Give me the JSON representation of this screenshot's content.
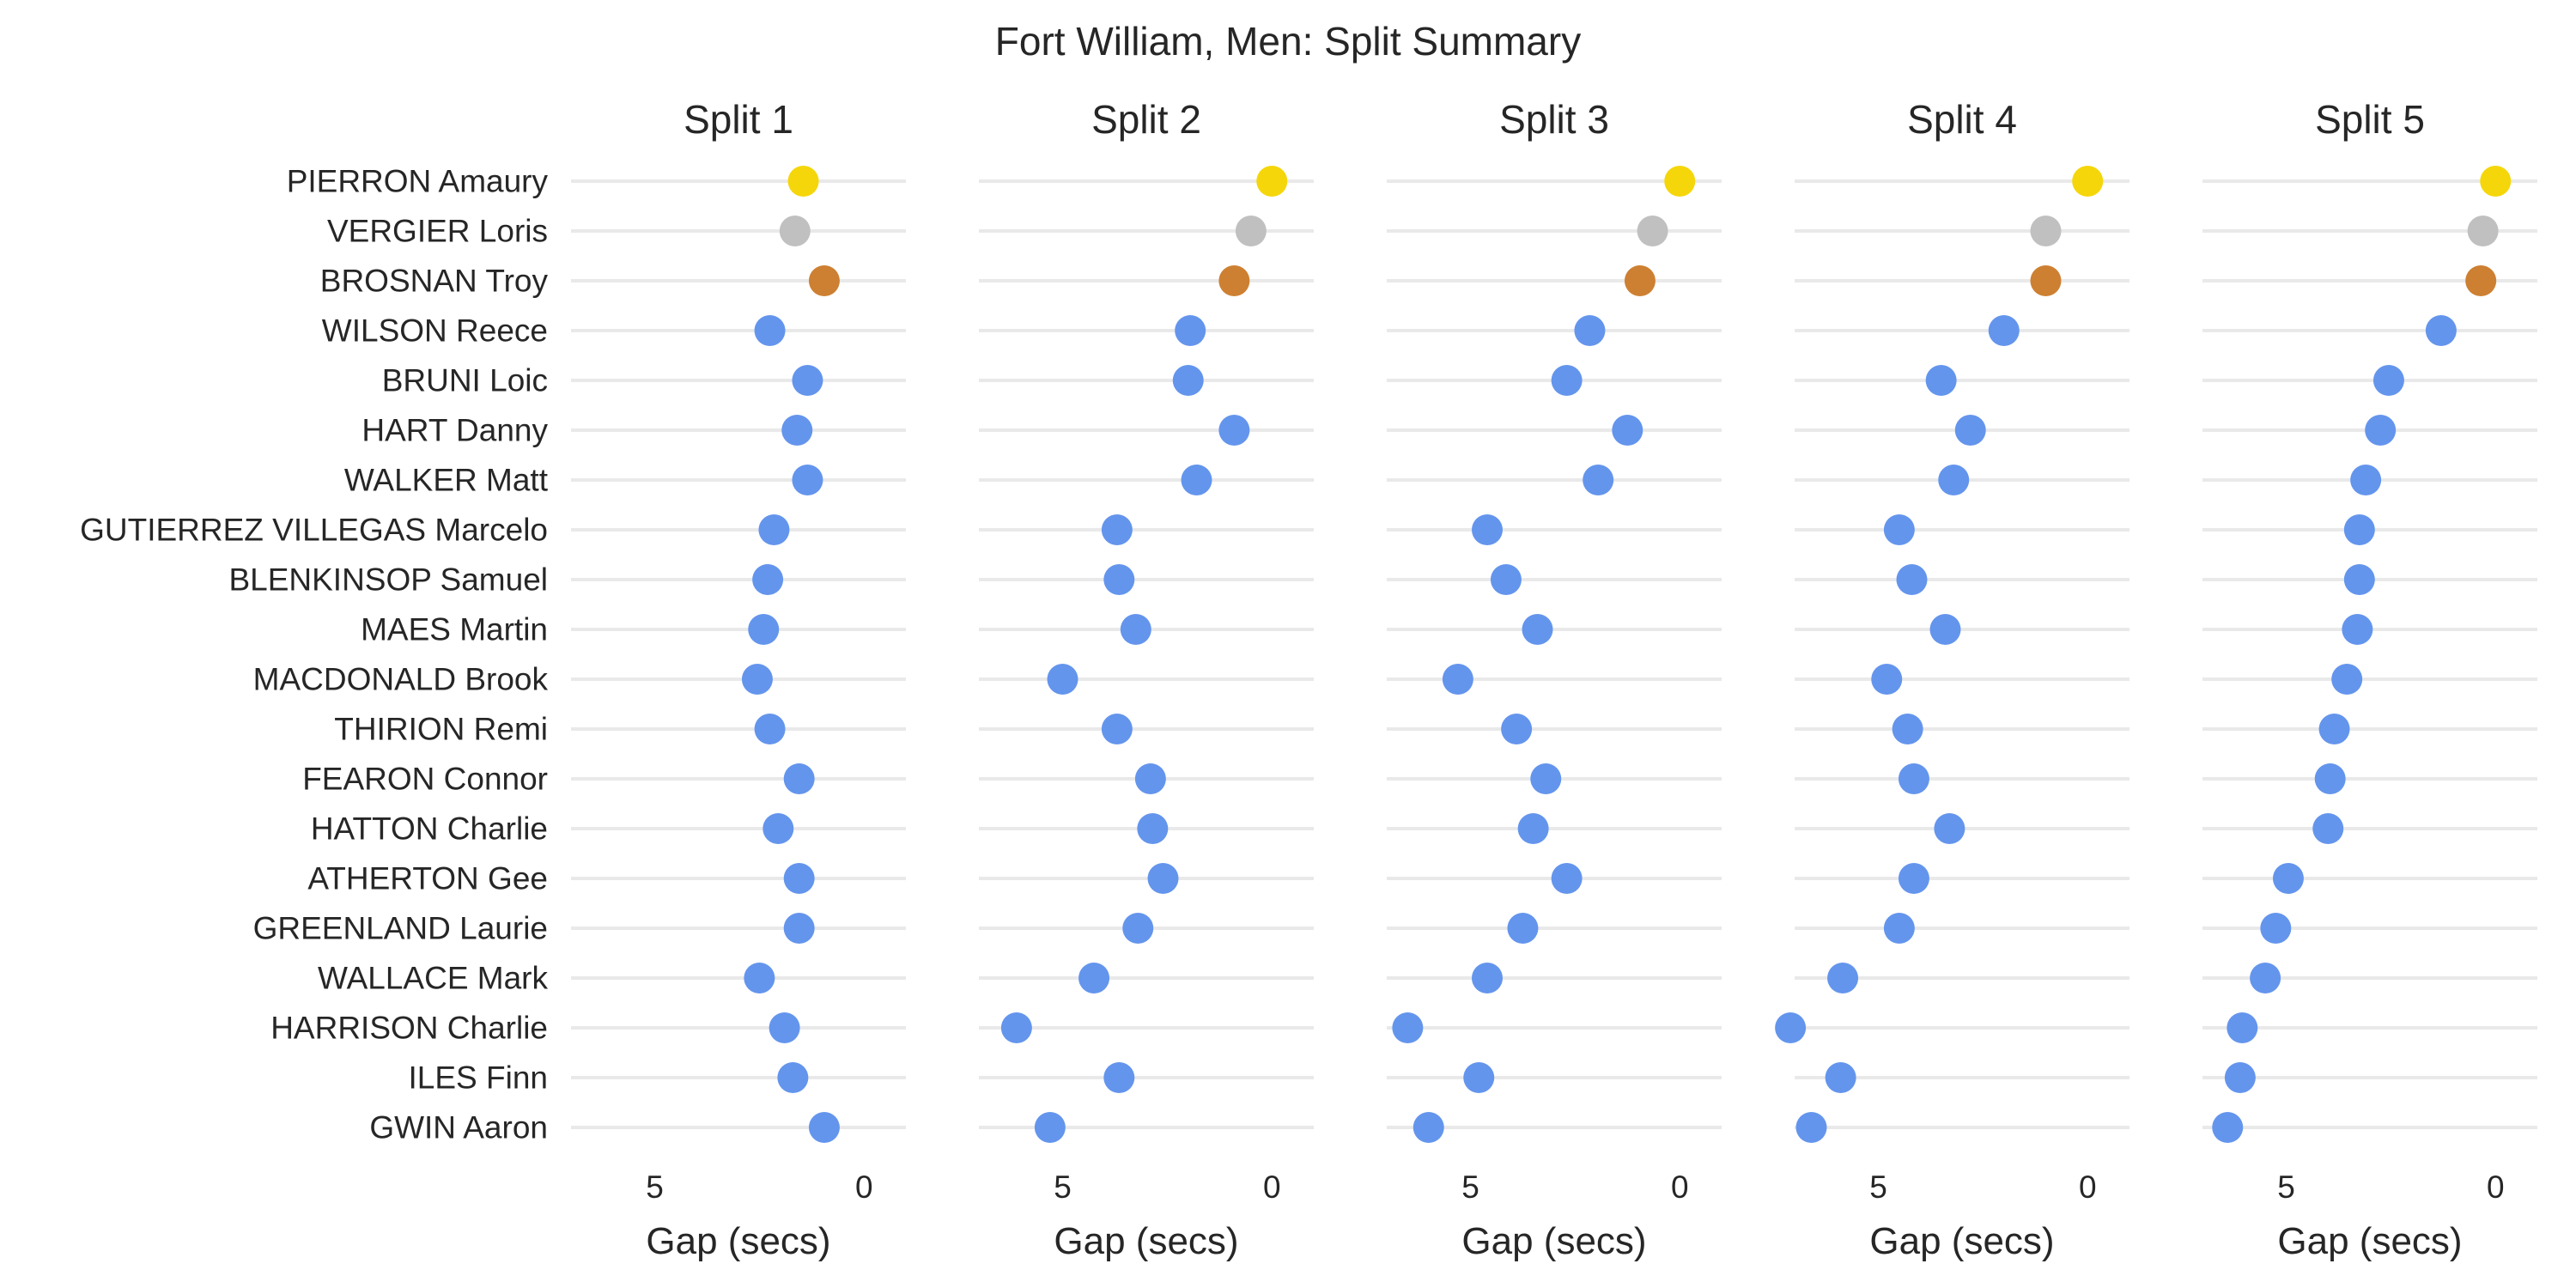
{
  "chart_data": {
    "type": "scatter",
    "title": "Fort William, Men: Split Summary",
    "xlabel": "Gap (secs)",
    "xlim": [
      7,
      -1
    ],
    "x_reversed": true,
    "xticks": [
      5,
      0
    ],
    "grid": "horizontal",
    "riders": [
      "PIERRON Amaury",
      "VERGIER Loris",
      "BROSNAN Troy",
      "WILSON Reece",
      "BRUNI Loic",
      "HART Danny",
      "WALKER Matt",
      "GUTIERREZ VILLEGAS Marcelo",
      "BLENKINSOP Samuel",
      "MAES Martin",
      "MACDONALD Brook",
      "THIRION Remi",
      "FEARON Connor",
      "HATTON Charlie",
      "ATHERTON Gee",
      "GREENLAND Laurie",
      "WALLACE Mark",
      "HARRISON Charlie",
      "ILES Finn",
      "GWIN Aaron"
    ],
    "podium_colors": [
      "#f5d60a",
      "#c0c0c0",
      "#cd8032"
    ],
    "other_color": "#6495ed",
    "panels": [
      {
        "name": "Split 1",
        "values": [
          1.45,
          1.65,
          0.95,
          2.25,
          1.35,
          1.6,
          1.35,
          2.15,
          2.3,
          2.4,
          2.55,
          2.25,
          1.55,
          2.05,
          1.55,
          1.55,
          2.5,
          1.9,
          1.7,
          0.95
        ]
      },
      {
        "name": "Split 2",
        "values": [
          0.0,
          0.5,
          0.9,
          1.95,
          2.0,
          0.9,
          1.8,
          3.7,
          3.65,
          3.25,
          5.0,
          3.7,
          2.9,
          2.85,
          2.6,
          3.2,
          4.25,
          6.1,
          3.65,
          5.3
        ]
      },
      {
        "name": "Split 3",
        "values": [
          0.0,
          0.65,
          0.95,
          2.15,
          2.7,
          1.25,
          1.95,
          4.6,
          4.15,
          3.4,
          5.3,
          3.9,
          3.2,
          3.5,
          2.7,
          3.75,
          4.6,
          6.5,
          4.8,
          6.0
        ]
      },
      {
        "name": "Split 4",
        "values": [
          0.0,
          1.0,
          1.0,
          2.0,
          3.5,
          2.8,
          3.2,
          4.5,
          4.2,
          3.4,
          4.8,
          4.3,
          4.15,
          3.3,
          4.15,
          4.5,
          5.85,
          7.1,
          5.9,
          6.6
        ]
      },
      {
        "name": "Split 5",
        "values": [
          0.0,
          0.3,
          0.35,
          1.3,
          2.55,
          2.75,
          3.1,
          3.25,
          3.25,
          3.3,
          3.55,
          3.85,
          3.95,
          4.0,
          4.95,
          5.25,
          5.5,
          6.05,
          6.1,
          6.4
        ]
      }
    ]
  }
}
